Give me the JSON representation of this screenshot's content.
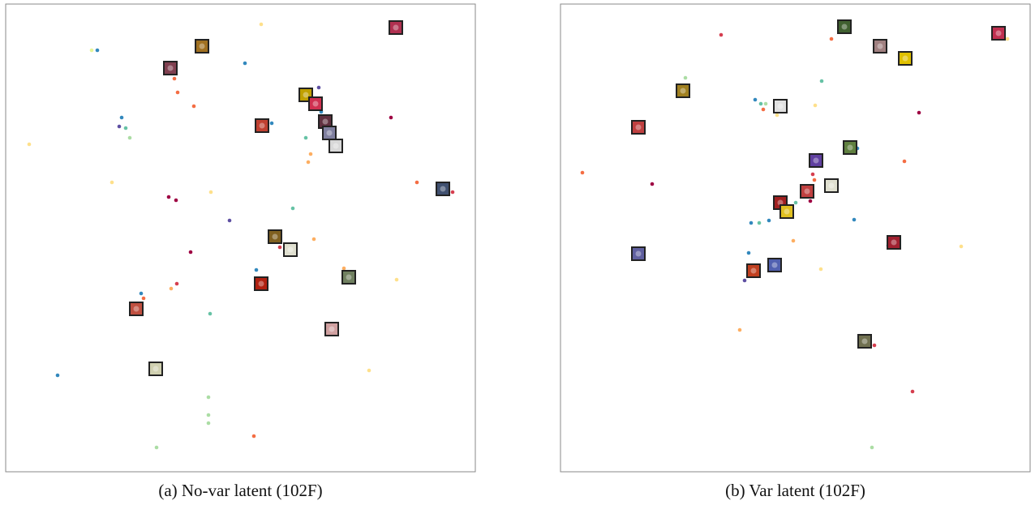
{
  "chart_data": [
    {
      "type": "scatter",
      "title": "(a) No-var latent (102F)",
      "xlim": [
        0,
        579
      ],
      "ylim": [
        0,
        577
      ],
      "series": [
        {
          "marker": "dot",
          "x": [
            106,
            113,
            315,
            295,
            208,
            212,
            232,
            143,
            140,
            148,
            153,
            29,
            386,
            389,
            328,
            370,
            376,
            373,
            475,
            507,
            551,
            131,
            201,
            210,
            253,
            276,
            354,
            329,
            338,
            380,
            228,
            309,
            309,
            417,
            482,
            211,
            204,
            167,
            170,
            252,
            64,
            448,
            250,
            250,
            250,
            306,
            186
          ],
          "y": [
            520,
            520,
            552,
            504,
            485,
            468,
            451,
            437,
            426,
            424,
            412,
            404,
            474,
            444,
            430,
            412,
            392,
            382,
            437,
            357,
            345,
            357,
            339,
            335,
            345,
            310,
            325,
            290,
            277,
            287,
            271,
            249,
            237,
            251,
            237,
            232,
            226,
            220,
            214,
            195,
            119,
            125,
            92,
            70,
            60,
            44,
            30
          ],
          "colors": [
            "#e6f598",
            "#3288bd",
            "#fee08b",
            "#3288bd",
            "#f46d43",
            "#f46d43",
            "#f46d43",
            "#3288bd",
            "#5e4fa2",
            "#66c2a5",
            "#abdda4",
            "#fee08b",
            "#5e4fa2",
            "#3288bd",
            "#3288bd",
            "#66c2a5",
            "#fdae61",
            "#fdae61",
            "#9e0142",
            "#f46d43",
            "#d53e4f",
            "#fee08b",
            "#9e0142",
            "#9e0142",
            "#fee08b",
            "#5e4fa2",
            "#66c2a5",
            "#66c2a5",
            "#d53e4f",
            "#fdae61",
            "#9e0142",
            "#3288bd",
            "#66c2a5",
            "#fdae61",
            "#fee08b",
            "#d53e4f",
            "#fdae61",
            "#3288bd",
            "#f46d43",
            "#66c2a5",
            "#3288bd",
            "#fee08b",
            "#abdda4",
            "#abdda4",
            "#abdda4",
            "#f46d43",
            "#abdda4"
          ]
        },
        {
          "marker": "image",
          "x": [
            481,
            242,
            203,
            370,
            382,
            394,
            399,
            407,
            316,
            539,
            332,
            351,
            315,
            423,
            161,
            402,
            185
          ],
          "y": [
            548,
            525,
            498,
            465,
            454,
            432,
            418,
            402,
            427,
            349,
            290,
            274,
            232,
            240,
            201,
            176,
            127
          ],
          "colors": [
            "#b03050",
            "#a07020",
            "#804050",
            "#c0a000",
            "#d03050",
            "#603040",
            "#8080a0",
            "#d8d8d8",
            "#c04030",
            "#405070",
            "#806020",
            "#e0e0d0",
            "#b02010",
            "#708060",
            "#c05040",
            "#d0a0a0",
            "#d0d0b0"
          ]
        }
      ]
    },
    {
      "type": "scatter",
      "title": "(b) Var latent (102F)",
      "xlim": [
        0,
        579
      ],
      "ylim": [
        0,
        577
      ],
      "series": [
        {
          "marker": "dot",
          "x": [
            198,
            334,
            551,
            154,
            322,
            240,
            247,
            250,
            253,
            267,
            314,
            442,
            366,
            424,
            27,
            113,
            311,
            313,
            308,
            290,
            235,
            245,
            257,
            362,
            287,
            404,
            494,
            232,
            227,
            321,
            221,
            387,
            434,
            384
          ],
          "y": [
            539,
            534,
            534,
            486,
            482,
            459,
            454,
            447,
            454,
            440,
            452,
            443,
            399,
            383,
            369,
            355,
            367,
            360,
            334,
            332,
            307,
            307,
            310,
            311,
            285,
            279,
            278,
            270,
            236,
            250,
            175,
            156,
            99,
            30
          ],
          "colors": [
            "#d53e4f",
            "#f46d43",
            "#fee08b",
            "#abdda4",
            "#66c2a5",
            "#3288bd",
            "#66c2a5",
            "#f46d43",
            "#abdda4",
            "#fee08b",
            "#fee08b",
            "#9e0142",
            "#3288bd",
            "#f46d43",
            "#f46d43",
            "#9e0142",
            "#d53e4f",
            "#f46d43",
            "#9e0142",
            "#66c2a5",
            "#3288bd",
            "#66c2a5",
            "#3288bd",
            "#3288bd",
            "#fdae61",
            "#3288bd",
            "#fee08b",
            "#3288bd",
            "#5e4fa2",
            "#fee08b",
            "#fdae61",
            "#d53e4f",
            "#d53e4f",
            "#abdda4"
          ]
        },
        {
          "marker": "image",
          "x": [
            350,
            394,
            540,
            425,
            151,
            271,
            96,
            357,
            315,
            334,
            304,
            271,
            279,
            411,
            96,
            264,
            238,
            375
          ],
          "y": [
            549,
            525,
            541,
            510,
            470,
            451,
            425,
            400,
            384,
            353,
            346,
            332,
            321,
            283,
            269,
            255,
            248,
            161
          ],
          "colors": [
            "#406030",
            "#a08080",
            "#c03050",
            "#e0c000",
            "#a08020",
            "#e0e0e0",
            "#c04040",
            "#608040",
            "#6040a0",
            "#e0e0d0",
            "#c04040",
            "#a02020",
            "#e0c020",
            "#a02030",
            "#6060a0",
            "#5060b0",
            "#c04020",
            "#707050"
          ]
        }
      ]
    }
  ]
}
